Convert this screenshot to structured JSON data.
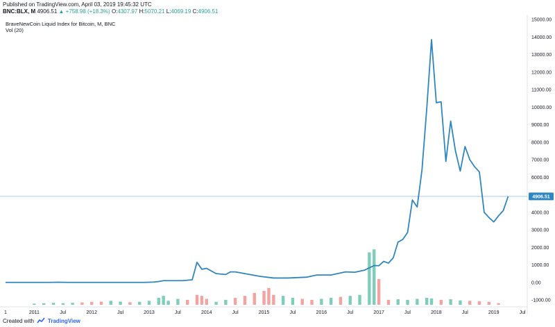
{
  "header": {
    "published": "Published on TradingView.com, April 03, 2019 19:45:32 UTC",
    "symbol": "BNC:BLX, M",
    "last": "4906.51",
    "change": "+758.98 (+18.3%)",
    "o_label": "O:",
    "o": "4307.97",
    "h_label": "H:",
    "h": "5070.21",
    "l_label": "L:",
    "l": "4069.19",
    "c_label": "C:",
    "c": "4906.51"
  },
  "legend": {
    "title": "BraveNewCoin Liquid Index for Bitcoin, M, BNC",
    "volume": "Vol (20)"
  },
  "footer": {
    "created_with": "Created with",
    "brand": "TradingView"
  },
  "colors": {
    "line": "#2e86c1",
    "vol_up": "#7fcdbb",
    "vol_down": "#f4a3a3",
    "last_price_line": "#a9cce3",
    "last_price_badge": "#2e86c1"
  },
  "chart_data": {
    "type": "line",
    "ylim": [
      -1000,
      15000
    ],
    "y_ticks": [
      -1000,
      0,
      1000,
      2000,
      3000,
      4000,
      5000,
      6000,
      7000,
      8000,
      9000,
      10000,
      11000,
      12000,
      13000,
      14000,
      15000
    ],
    "y_tick_labels": [
      "-1000.00",
      "0.00",
      "1000.00",
      "2000.00",
      "3000.00",
      "4000.00",
      "5000.00",
      "6000.00",
      "7000.00",
      "8000.00",
      "9000.00",
      "10000.00",
      "11000.00",
      "12000.00",
      "13000.00",
      "14000.00",
      "15000.00"
    ],
    "x_ticks": [
      {
        "label": "1",
        "date": "2010-07"
      },
      {
        "label": "2011",
        "date": "2011-01"
      },
      {
        "label": "Jul",
        "date": "2011-07"
      },
      {
        "label": "2012",
        "date": "2012-01"
      },
      {
        "label": "Jul",
        "date": "2012-07"
      },
      {
        "label": "2013",
        "date": "2013-01"
      },
      {
        "label": "Jul",
        "date": "2013-07"
      },
      {
        "label": "2014",
        "date": "2014-01"
      },
      {
        "label": "Jul",
        "date": "2014-07"
      },
      {
        "label": "2015",
        "date": "2015-01"
      },
      {
        "label": "Jul",
        "date": "2015-07"
      },
      {
        "label": "2016",
        "date": "2016-01"
      },
      {
        "label": "Jul",
        "date": "2016-07"
      },
      {
        "label": "2017",
        "date": "2017-01"
      },
      {
        "label": "Jul",
        "date": "2017-07"
      },
      {
        "label": "2018",
        "date": "2018-01"
      },
      {
        "label": "Jul",
        "date": "2018-07"
      },
      {
        "label": "2019",
        "date": "2019-01"
      },
      {
        "label": "Jul",
        "date": "2019-07"
      }
    ],
    "x_domain": [
      "2010-07",
      "2019-08"
    ],
    "last_price": 4906.51,
    "last_price_label": "4906.51",
    "price_series": {
      "x": [
        "2010-07",
        "2011-01",
        "2011-04",
        "2011-06",
        "2011-08",
        "2011-12",
        "2012-06",
        "2012-12",
        "2013-02",
        "2013-03",
        "2013-04",
        "2013-06",
        "2013-08",
        "2013-10",
        "2013-11",
        "2013-12",
        "2014-01",
        "2014-03",
        "2014-05",
        "2014-06",
        "2014-07",
        "2014-09",
        "2014-12",
        "2015-03",
        "2015-06",
        "2015-10",
        "2015-12",
        "2016-03",
        "2016-06",
        "2016-08",
        "2016-10",
        "2016-12",
        "2017-01",
        "2017-02",
        "2017-03",
        "2017-04",
        "2017-05",
        "2017-06",
        "2017-07",
        "2017-08",
        "2017-09",
        "2017-10",
        "2017-11",
        "2017-12",
        "2018-01",
        "2018-02",
        "2018-03",
        "2018-04",
        "2018-05",
        "2018-06",
        "2018-07",
        "2018-08",
        "2018-09",
        "2018-10",
        "2018-11",
        "2018-12",
        "2019-01",
        "2019-02",
        "2019-03"
      ],
      "y": [
        0,
        0,
        0,
        10,
        0,
        0,
        0,
        0,
        20,
        50,
        100,
        100,
        100,
        150,
        1150,
        750,
        800,
        500,
        450,
        600,
        600,
        500,
        350,
        250,
        250,
        300,
        420,
        420,
        600,
        580,
        700,
        960,
        950,
        1200,
        1100,
        1400,
        2300,
        2450,
        2850,
        4700,
        4300,
        6400,
        9900,
        13850,
        10250,
        10300,
        6900,
        9200,
        7500,
        6350,
        7750,
        7000,
        6600,
        6300,
        4000,
        3700,
        3450,
        3800,
        4100
      ],
      "last_point": {
        "x": "2019-04",
        "y": 4906.51
      }
    },
    "volume_series": {
      "x": [
        "2011-01",
        "2011-03",
        "2011-05",
        "2011-07",
        "2011-09",
        "2011-11",
        "2012-01",
        "2012-03",
        "2012-05",
        "2012-07",
        "2012-09",
        "2012-11",
        "2013-01",
        "2013-03",
        "2013-04",
        "2013-05",
        "2013-07",
        "2013-09",
        "2013-11",
        "2013-12",
        "2014-01",
        "2014-03",
        "2014-05",
        "2014-07",
        "2014-09",
        "2014-11",
        "2015-01",
        "2015-02",
        "2015-03",
        "2015-05",
        "2015-07",
        "2015-09",
        "2015-11",
        "2016-01",
        "2016-03",
        "2016-05",
        "2016-07",
        "2016-09",
        "2016-11",
        "2016-12",
        "2017-01",
        "2017-03",
        "2017-05",
        "2017-07",
        "2017-09",
        "2017-11",
        "2017-12",
        "2018-02",
        "2018-04",
        "2018-06",
        "2018-08",
        "2018-10",
        "2018-12",
        "2019-02"
      ],
      "y": [
        60,
        80,
        100,
        80,
        100,
        120,
        150,
        160,
        200,
        160,
        130,
        150,
        200,
        350,
        450,
        200,
        300,
        250,
        500,
        450,
        300,
        150,
        250,
        350,
        450,
        600,
        700,
        850,
        500,
        450,
        350,
        300,
        250,
        300,
        350,
        400,
        450,
        500,
        2650,
        2800,
        1300,
        250,
        280,
        250,
        300,
        350,
        320,
        250,
        280,
        220,
        200,
        180,
        150,
        80
      ],
      "direction": [
        "up",
        "up",
        "up",
        "up",
        "up",
        "down",
        "down",
        "down",
        "up",
        "up",
        "down",
        "up",
        "up",
        "up",
        "up",
        "up",
        "up",
        "down",
        "down",
        "down",
        "down",
        "up",
        "up",
        "down",
        "down",
        "down",
        "down",
        "down",
        "down",
        "up",
        "up",
        "down",
        "down",
        "up",
        "up",
        "down",
        "up",
        "up",
        "up",
        "up",
        "down",
        "down",
        "up",
        "up",
        "up",
        "up",
        "up",
        "down",
        "up",
        "up",
        "down",
        "down",
        "down",
        "down"
      ]
    }
  }
}
